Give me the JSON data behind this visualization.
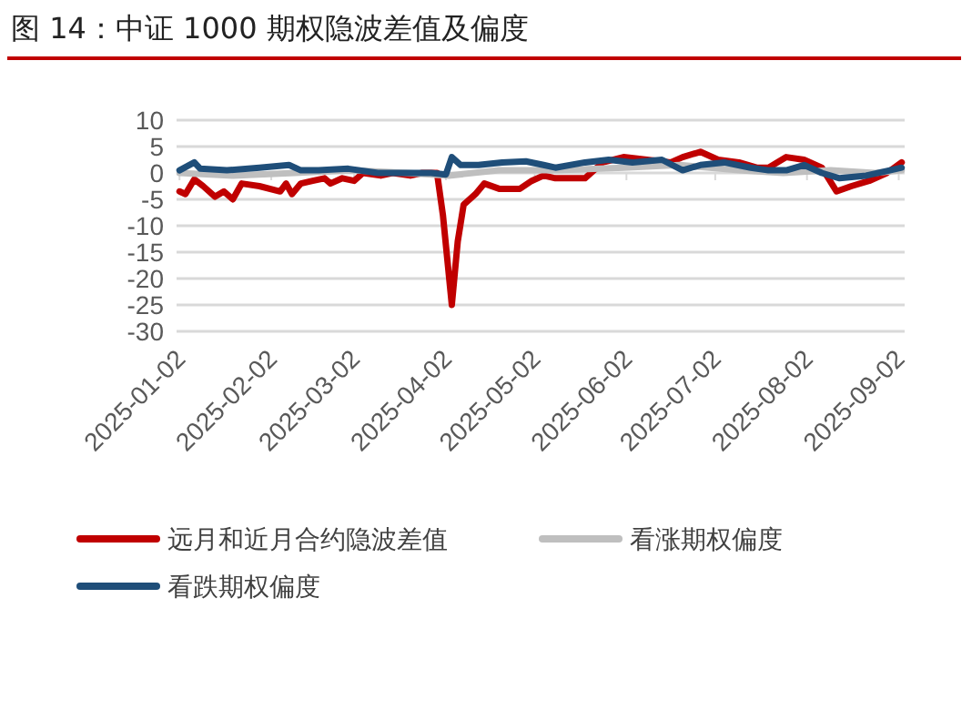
{
  "chart_data": {
    "type": "line",
    "title": "图 14：中证 1000 期权隐波差值及偏度",
    "ylim": [
      -30,
      10
    ],
    "yticks": [
      -30,
      -25,
      -20,
      -15,
      -10,
      -5,
      0,
      5,
      10
    ],
    "xlim": [
      "2025-01-01",
      "2025-09-04"
    ],
    "xticks": [
      "2025-01-02",
      "2025-02-02",
      "2025-03-02",
      "2025-04-02",
      "2025-05-02",
      "2025-06-02",
      "2025-07-02",
      "2025-08-02",
      "2025-09-02"
    ],
    "grid": "y",
    "legend": "bottom",
    "series": [
      {
        "name": "远月和近月合约隐波差值",
        "color": "#c00000",
        "x": [
          "2025-01-02",
          "2025-01-04",
          "2025-01-07",
          "2025-01-10",
          "2025-01-14",
          "2025-01-17",
          "2025-01-20",
          "2025-01-23",
          "2025-01-29",
          "2025-02-05",
          "2025-02-07",
          "2025-02-09",
          "2025-02-12",
          "2025-02-16",
          "2025-02-20",
          "2025-02-22",
          "2025-02-26",
          "2025-03-02",
          "2025-03-05",
          "2025-03-11",
          "2025-03-15",
          "2025-03-21",
          "2025-03-25",
          "2025-03-30",
          "2025-04-01",
          "2025-04-04",
          "2025-04-06",
          "2025-04-08",
          "2025-04-12",
          "2025-04-15",
          "2025-04-20",
          "2025-04-27",
          "2025-05-01",
          "2025-05-05",
          "2025-05-09",
          "2025-05-19",
          "2025-05-25",
          "2025-06-01",
          "2025-06-09",
          "2025-06-17",
          "2025-06-21",
          "2025-06-27",
          "2025-07-03",
          "2025-07-10",
          "2025-07-16",
          "2025-07-20",
          "2025-07-26",
          "2025-08-01",
          "2025-08-07",
          "2025-08-12",
          "2025-08-17",
          "2025-08-23",
          "2025-08-29",
          "2025-09-03"
        ],
        "values": [
          -3.5,
          -4,
          -1.2,
          -2.5,
          -4.5,
          -3.5,
          -5,
          -2,
          -2.5,
          -3.5,
          -2,
          -4,
          -2,
          -1.5,
          -1,
          -2,
          -1,
          -1.5,
          0,
          -0.5,
          0,
          -0.5,
          0,
          0,
          -8,
          -25,
          -13,
          -6,
          -4,
          -2,
          -3,
          -3,
          -1.5,
          -0.5,
          -1,
          -1,
          2,
          3,
          2.5,
          2,
          3,
          4,
          2.5,
          2,
          1,
          1,
          3,
          2.5,
          1,
          -3.5,
          -2.5,
          -1.5,
          0,
          2
        ]
      },
      {
        "name": "看涨期权偏度",
        "color": "#bfbfbf",
        "x": [
          "2025-01-02",
          "2025-01-20",
          "2025-02-10",
          "2025-03-01",
          "2025-03-20",
          "2025-04-03",
          "2025-04-20",
          "2025-05-10",
          "2025-06-01",
          "2025-06-20",
          "2025-07-10",
          "2025-07-25",
          "2025-08-10",
          "2025-08-25",
          "2025-09-03"
        ],
        "values": [
          0,
          -0.5,
          0,
          0.5,
          0,
          -0.5,
          0.5,
          0.5,
          1,
          1.5,
          0.5,
          0,
          0.5,
          0,
          0.5
        ]
      },
      {
        "name": "看跌期权偏度",
        "color": "#1f4e79",
        "x": [
          "2025-01-02",
          "2025-01-07",
          "2025-01-09",
          "2025-01-18",
          "2025-01-29",
          "2025-02-08",
          "2025-02-12",
          "2025-02-18",
          "2025-02-28",
          "2025-03-10",
          "2025-03-20",
          "2025-03-28",
          "2025-04-02",
          "2025-04-04",
          "2025-04-07",
          "2025-04-13",
          "2025-04-21",
          "2025-04-29",
          "2025-05-05",
          "2025-05-09",
          "2025-05-19",
          "2025-05-27",
          "2025-06-04",
          "2025-06-14",
          "2025-06-21",
          "2025-06-27",
          "2025-07-05",
          "2025-07-14",
          "2025-07-20",
          "2025-07-26",
          "2025-08-01",
          "2025-08-07",
          "2025-08-13",
          "2025-08-22",
          "2025-08-30",
          "2025-09-03"
        ],
        "values": [
          0.5,
          2,
          0.8,
          0.5,
          1,
          1.5,
          0.5,
          0.5,
          0.8,
          0,
          0,
          0,
          -0.3,
          3,
          1.5,
          1.5,
          2,
          2.2,
          1.5,
          1,
          2,
          2.5,
          2,
          2.5,
          0.5,
          1.5,
          2,
          1,
          0.5,
          0.5,
          1.5,
          0,
          -1,
          -0.5,
          0.5,
          1
        ]
      }
    ]
  }
}
